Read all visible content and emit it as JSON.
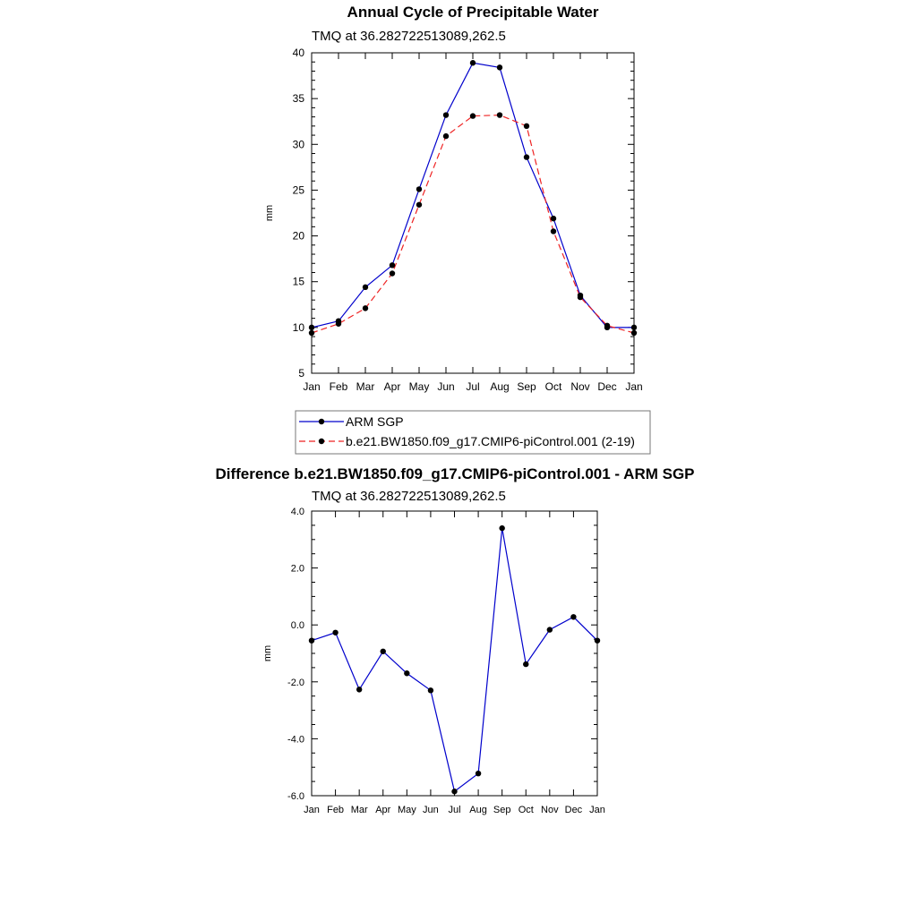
{
  "chart_data": [
    {
      "type": "line",
      "title": "Annual Cycle of Precipitable Water",
      "subtitle": "TMQ at 36.282722513089,262.5",
      "ylabel": "mm",
      "ylim": [
        5,
        40
      ],
      "yticks": [
        "5",
        "10",
        "15",
        "20",
        "25",
        "30",
        "35",
        "40"
      ],
      "categories": [
        "Jan",
        "Feb",
        "Mar",
        "Apr",
        "May",
        "Jun",
        "Jul",
        "Aug",
        "Sep",
        "Oct",
        "Nov",
        "Dec",
        "Jan"
      ],
      "legend_position": "bottom",
      "series": [
        {
          "name": "ARM SGP",
          "color": "#0000cc",
          "style": "solid",
          "values": [
            10.0,
            10.7,
            14.4,
            16.8,
            25.1,
            33.2,
            38.9,
            38.4,
            28.6,
            21.9,
            13.5,
            10.0,
            10.0
          ]
        },
        {
          "name": "b.e21.BW1850.f09_g17.CMIP6-piControl.001 (2-19)",
          "color": "#ee2222",
          "style": "dashed",
          "values": [
            9.4,
            10.4,
            12.1,
            15.9,
            23.4,
            30.9,
            33.1,
            33.2,
            32.0,
            20.5,
            13.3,
            10.2,
            9.4
          ]
        }
      ]
    },
    {
      "type": "line",
      "title": "Difference b.e21.BW1850.f09_g17.CMIP6-piControl.001 - ARM SGP",
      "subtitle": "TMQ at 36.282722513089,262.5",
      "ylabel": "mm",
      "ylim": [
        -6,
        4
      ],
      "yticks": [
        "-6.0",
        "-4.0",
        "-2.0",
        "0.0",
        "2.0",
        "4.0"
      ],
      "categories": [
        "Jan",
        "Feb",
        "Mar",
        "Apr",
        "May",
        "Jun",
        "Jul",
        "Aug",
        "Sep",
        "Oct",
        "Nov",
        "Dec",
        "Jan"
      ],
      "series": [
        {
          "color": "#0000cc",
          "style": "solid",
          "values": [
            -0.55,
            -0.27,
            -2.27,
            -0.93,
            -1.7,
            -2.3,
            -5.85,
            -5.22,
            3.4,
            -1.38,
            -0.17,
            0.28,
            -0.55
          ]
        }
      ]
    }
  ]
}
